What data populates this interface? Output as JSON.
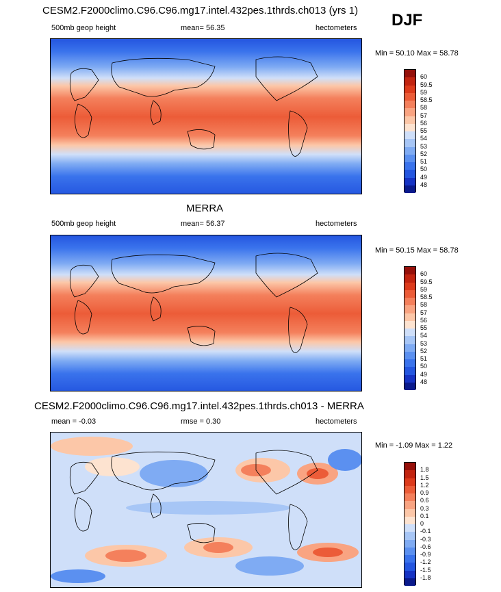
{
  "season": "DJF",
  "colors": {
    "abs_scale": [
      "#0a1a8c",
      "#1633c4",
      "#2456e0",
      "#3a73ec",
      "#5b90f0",
      "#7fabf3",
      "#a7c6f6",
      "#cfdff9",
      "#fde3d0",
      "#fcc7a8",
      "#f9a482",
      "#f4805c",
      "#ec5c38",
      "#dd3b1c",
      "#c22410",
      "#96100a"
    ],
    "diff_scale": [
      "#0a1a8c",
      "#1633c4",
      "#2456e0",
      "#3a73ec",
      "#5b90f0",
      "#7fabf3",
      "#a7c6f6",
      "#cfdff9",
      "#fde3d0",
      "#fcc7a8",
      "#f9a482",
      "#f4805c",
      "#ec5c38",
      "#dd3b1c",
      "#c22410",
      "#96100a"
    ]
  },
  "chart_data": [
    {
      "type": "heatmap",
      "title": "CESM2.F2000climo.C96.C96.mg17.intel.432pes.1thrds.ch013 (yrs 1)",
      "left_label": "500mb geop height",
      "mean_label": "mean=  56.35",
      "units": "hectometers",
      "minmax": "Min =  50.10 Max =  58.78",
      "levels": [
        "60",
        "59.5",
        "59",
        "58.5",
        "58",
        "57",
        "56",
        "55",
        "54",
        "53",
        "52",
        "51",
        "50",
        "49",
        "48"
      ]
    },
    {
      "type": "heatmap",
      "title": "MERRA",
      "left_label": "500mb geop height",
      "mean_label": "mean=  56.37",
      "units": "hectometers",
      "minmax": "Min =  50.15 Max =  58.78",
      "levels": [
        "60",
        "59.5",
        "59",
        "58.5",
        "58",
        "57",
        "56",
        "55",
        "54",
        "53",
        "52",
        "51",
        "50",
        "49",
        "48"
      ]
    },
    {
      "type": "heatmap",
      "title": "CESM2.F2000climo.C96.C96.mg17.intel.432pes.1thrds.ch013 - MERRA",
      "left_label": "mean =  -0.03",
      "mean_label": "rmse =   0.30",
      "units": "hectometers",
      "minmax": "Min =  -1.09 Max =   1.22",
      "levels": [
        "1.8",
        "1.5",
        "1.2",
        "0.9",
        "0.6",
        "0.3",
        "0.1",
        "0",
        "-0.1",
        "-0.3",
        "-0.6",
        "-0.9",
        "-1.2",
        "-1.5",
        "-1.8"
      ]
    }
  ]
}
